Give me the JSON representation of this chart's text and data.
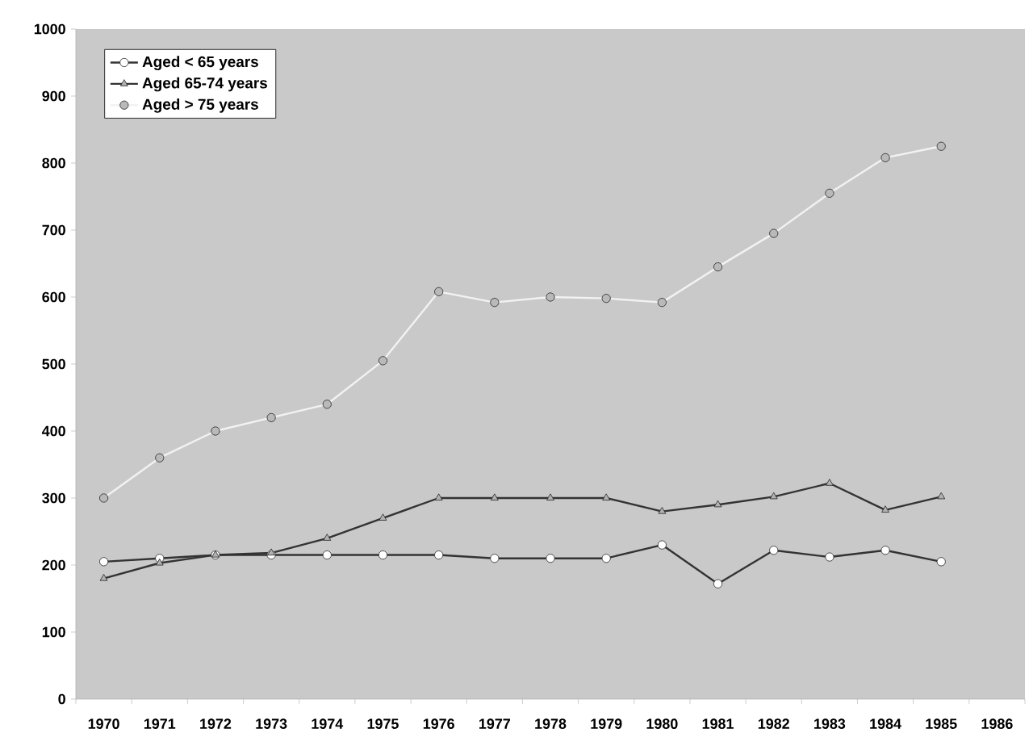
{
  "chart_data": {
    "type": "line",
    "categories": [
      "1970",
      "1971",
      "1972",
      "1973",
      "1974",
      "1975",
      "1976",
      "1977",
      "1978",
      "1979",
      "1980",
      "1981",
      "1982",
      "1983",
      "1984",
      "1985",
      "1986"
    ],
    "series": [
      {
        "name": "Aged < 65 years",
        "color": "#333333",
        "marker": "circle",
        "values": [
          205,
          210,
          215,
          215,
          215,
          215,
          215,
          210,
          210,
          210,
          230,
          172,
          222,
          212,
          222,
          205,
          null
        ]
      },
      {
        "name": "Aged 65-74 years",
        "color": "#333333",
        "marker": "triangle",
        "values": [
          180,
          203,
          215,
          218,
          240,
          270,
          300,
          300,
          300,
          300,
          280,
          290,
          302,
          322,
          282,
          302,
          null
        ]
      },
      {
        "name": "Aged > 75 years",
        "color": "#f2f2f2",
        "marker": "circle",
        "values": [
          300,
          360,
          400,
          420,
          440,
          505,
          608,
          592,
          600,
          598,
          592,
          645,
          695,
          755,
          808,
          825,
          null
        ]
      }
    ],
    "ylim": [
      0,
      1000
    ],
    "yticks": [
      0,
      100,
      200,
      300,
      400,
      500,
      600,
      700,
      800,
      900,
      1000
    ],
    "grid": false,
    "legend": "top left"
  }
}
